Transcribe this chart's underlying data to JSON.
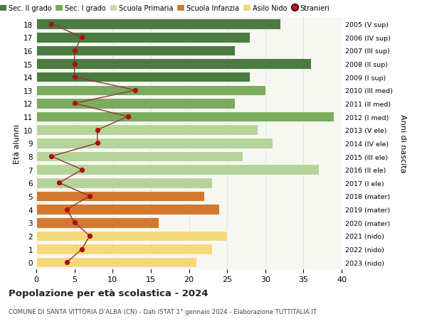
{
  "ages": [
    18,
    17,
    16,
    15,
    14,
    13,
    12,
    11,
    10,
    9,
    8,
    7,
    6,
    5,
    4,
    3,
    2,
    1,
    0
  ],
  "years": [
    "2005 (V sup)",
    "2006 (IV sup)",
    "2007 (III sup)",
    "2008 (II sup)",
    "2009 (I sup)",
    "2010 (III med)",
    "2011 (II med)",
    "2012 (I med)",
    "2013 (V ele)",
    "2014 (IV ele)",
    "2015 (III ele)",
    "2016 (II ele)",
    "2017 (I ele)",
    "2018 (mater)",
    "2019 (mater)",
    "2020 (mater)",
    "2021 (nido)",
    "2022 (nido)",
    "2023 (nido)"
  ],
  "bar_values": [
    32,
    28,
    26,
    36,
    28,
    30,
    26,
    39,
    29,
    31,
    27,
    37,
    23,
    22,
    24,
    16,
    25,
    23,
    21
  ],
  "stranieri": [
    2,
    6,
    5,
    5,
    5,
    13,
    5,
    12,
    8,
    8,
    2,
    6,
    3,
    7,
    4,
    5,
    7,
    6,
    4
  ],
  "bar_colors": [
    "#4a7c3f",
    "#4a7c3f",
    "#4a7c3f",
    "#4a7c3f",
    "#4a7c3f",
    "#7aab5e",
    "#7aab5e",
    "#7aab5e",
    "#b5d49a",
    "#b5d49a",
    "#b5d49a",
    "#b5d49a",
    "#b5d49a",
    "#d17a2f",
    "#d17a2f",
    "#d17a2f",
    "#f5d87c",
    "#f5d87c",
    "#f5d87c"
  ],
  "legend_labels": [
    "Sec. II grado",
    "Sec. I grado",
    "Scuola Primaria",
    "Scuola Infanzia",
    "Asilo Nido",
    "Stranieri"
  ],
  "legend_colors": [
    "#4a7c3f",
    "#7aab5e",
    "#c8dba8",
    "#d17a2f",
    "#f5d87c",
    "#cc1111"
  ],
  "stranieri_color": "#aa1111",
  "stranieri_line_color": "#993333",
  "title": "Popolazione per età scolastica - 2024",
  "subtitle": "COMUNE DI SANTA VITTORIA D'ALBA (CN) - Dati ISTAT 1° gennaio 2024 - Elaborazione TUTTITALIA.IT",
  "ylabel_left": "Età alunni",
  "ylabel_right": "Anni di nascita",
  "xlim": [
    0,
    40
  ],
  "plot_bg": "#f7f7f2",
  "fig_bg": "#ffffff",
  "grid_color": "#cccccc"
}
